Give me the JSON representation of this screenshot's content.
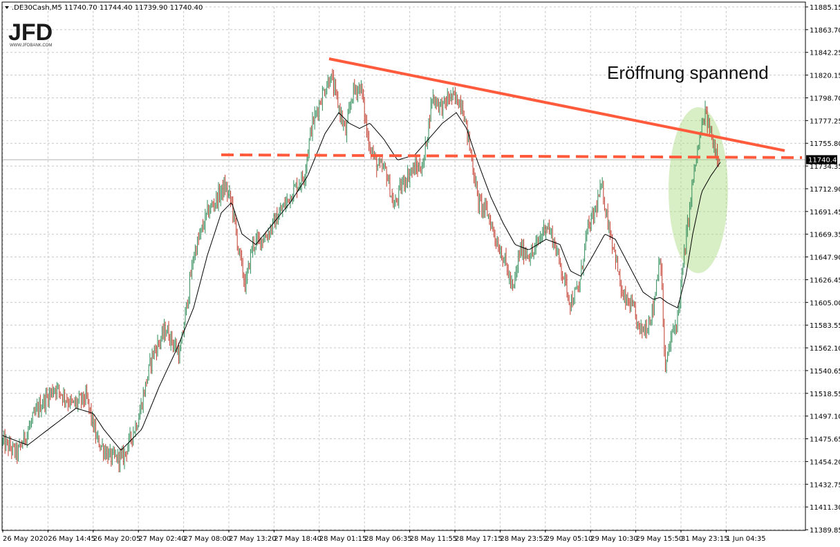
{
  "chart_data": {
    "type": "candlestick",
    "symbol_header": ".DE30Cash,M5  11740.70 11744.40 11739.90 11740.40",
    "ohlc": {
      "open": 11740.7,
      "high": 11744.4,
      "low": 11739.9,
      "close": 11740.4
    },
    "current_price": 11740.4,
    "current_price_label": "11740.40",
    "ylim": [
      11389.85,
      11885.15
    ],
    "y_ticks": [
      "11885.15",
      "11863.70",
      "11842.25",
      "11820.15",
      "11798.70",
      "11777.25",
      "11755.80",
      "11734.35",
      "11712.90",
      "11691.45",
      "11669.35",
      "11647.90",
      "11626.45",
      "11605.00",
      "11583.55",
      "11562.10",
      "11540.65",
      "11518.55",
      "11497.10",
      "11475.65",
      "11454.20",
      "11432.75",
      "11411.30",
      "11389.85"
    ],
    "x_ticks": [
      "26 May 2020",
      "26 May 14:45",
      "26 May 20:05",
      "27 May 02:40",
      "27 May 08:00",
      "27 May 13:20",
      "27 May 18:40",
      "28 May 01:15",
      "28 May 06:35",
      "28 May 11:55",
      "28 May 17:15",
      "28 May 23:52",
      "29 May 05:10",
      "29 May 10:30",
      "29 May 15:50",
      "31 May 23:15",
      "1 Jun 04:35"
    ],
    "price_path": [
      [
        0,
        11475
      ],
      [
        25,
        11462
      ],
      [
        55,
        11505
      ],
      [
        80,
        11525
      ],
      [
        105,
        11508
      ],
      [
        125,
        11515
      ],
      [
        140,
        11475
      ],
      [
        160,
        11458
      ],
      [
        178,
        11458
      ],
      [
        200,
        11495
      ],
      [
        220,
        11555
      ],
      [
        240,
        11580
      ],
      [
        260,
        11555
      ],
      [
        280,
        11650
      ],
      [
        300,
        11690
      ],
      [
        325,
        11715
      ],
      [
        335,
        11700
      ],
      [
        345,
        11655
      ],
      [
        355,
        11620
      ],
      [
        365,
        11660
      ],
      [
        385,
        11668
      ],
      [
        405,
        11690
      ],
      [
        425,
        11712
      ],
      [
        440,
        11725
      ],
      [
        450,
        11770
      ],
      [
        465,
        11800
      ],
      [
        478,
        11820
      ],
      [
        490,
        11790
      ],
      [
        500,
        11765
      ],
      [
        510,
        11805
      ],
      [
        522,
        11810
      ],
      [
        532,
        11760
      ],
      [
        545,
        11735
      ],
      [
        558,
        11730
      ],
      [
        570,
        11695
      ],
      [
        582,
        11718
      ],
      [
        595,
        11730
      ],
      [
        612,
        11735
      ],
      [
        625,
        11800
      ],
      [
        640,
        11790
      ],
      [
        650,
        11800
      ],
      [
        668,
        11795
      ],
      [
        680,
        11750
      ],
      [
        692,
        11700
      ],
      [
        705,
        11690
      ],
      [
        720,
        11660
      ],
      [
        730,
        11645
      ],
      [
        742,
        11615
      ],
      [
        752,
        11655
      ],
      [
        770,
        11650
      ],
      [
        790,
        11680
      ],
      [
        800,
        11665
      ],
      [
        815,
        11630
      ],
      [
        825,
        11605
      ],
      [
        838,
        11620
      ],
      [
        848,
        11670
      ],
      [
        860,
        11690
      ],
      [
        870,
        11715
      ],
      [
        880,
        11680
      ],
      [
        890,
        11650
      ],
      [
        900,
        11610
      ],
      [
        915,
        11600
      ],
      [
        925,
        11578
      ],
      [
        935,
        11582
      ],
      [
        945,
        11600
      ],
      [
        955,
        11655
      ],
      [
        962,
        11540
      ],
      [
        970,
        11570
      ],
      [
        980,
        11590
      ],
      [
        988,
        11640
      ],
      [
        995,
        11680
      ],
      [
        1003,
        11725
      ],
      [
        1012,
        11760
      ],
      [
        1020,
        11785
      ],
      [
        1028,
        11765
      ],
      [
        1035,
        11750
      ],
      [
        1042,
        11742
      ]
    ],
    "ma_path": [
      [
        0,
        11480
      ],
      [
        40,
        11470
      ],
      [
        80,
        11490
      ],
      [
        110,
        11505
      ],
      [
        135,
        11500
      ],
      [
        150,
        11485
      ],
      [
        175,
        11465
      ],
      [
        205,
        11485
      ],
      [
        230,
        11525
      ],
      [
        255,
        11560
      ],
      [
        280,
        11600
      ],
      [
        300,
        11650
      ],
      [
        320,
        11690
      ],
      [
        335,
        11700
      ],
      [
        350,
        11670
      ],
      [
        370,
        11660
      ],
      [
        395,
        11680
      ],
      [
        420,
        11700
      ],
      [
        445,
        11725
      ],
      [
        470,
        11765
      ],
      [
        490,
        11785
      ],
      [
        505,
        11775
      ],
      [
        520,
        11770
      ],
      [
        535,
        11775
      ],
      [
        555,
        11760
      ],
      [
        575,
        11740
      ],
      [
        600,
        11745
      ],
      [
        620,
        11760
      ],
      [
        640,
        11775
      ],
      [
        660,
        11785
      ],
      [
        675,
        11770
      ],
      [
        690,
        11740
      ],
      [
        710,
        11705
      ],
      [
        728,
        11680
      ],
      [
        745,
        11660
      ],
      [
        765,
        11655
      ],
      [
        790,
        11665
      ],
      [
        810,
        11660
      ],
      [
        825,
        11635
      ],
      [
        840,
        11630
      ],
      [
        858,
        11650
      ],
      [
        875,
        11670
      ],
      [
        890,
        11665
      ],
      [
        910,
        11640
      ],
      [
        930,
        11615
      ],
      [
        945,
        11608
      ],
      [
        955,
        11610
      ],
      [
        965,
        11605
      ],
      [
        980,
        11600
      ],
      [
        992,
        11630
      ],
      [
        1002,
        11670
      ],
      [
        1015,
        11710
      ],
      [
        1028,
        11725
      ],
      [
        1042,
        11738
      ]
    ],
    "annotations": [
      {
        "type": "trendline",
        "from": [
          "28 May 01:15",
          11836
        ],
        "to": [
          "1 Jun 04:35+",
          11749
        ]
      },
      {
        "type": "support_line",
        "value": 11745
      }
    ],
    "annotation_text": "Eröffnung spannend",
    "grid": true,
    "colors": {
      "up": "#2e8b57",
      "down": "#c0392b",
      "ma": "#000000",
      "trend": "#ff5a3c",
      "highlight": "#a8d97f",
      "grid": "#c8c8c8",
      "price_label_bg": "#000000"
    }
  },
  "logo": {
    "text": "JFD",
    "sub": "WWW.JFDBANK.COM"
  }
}
